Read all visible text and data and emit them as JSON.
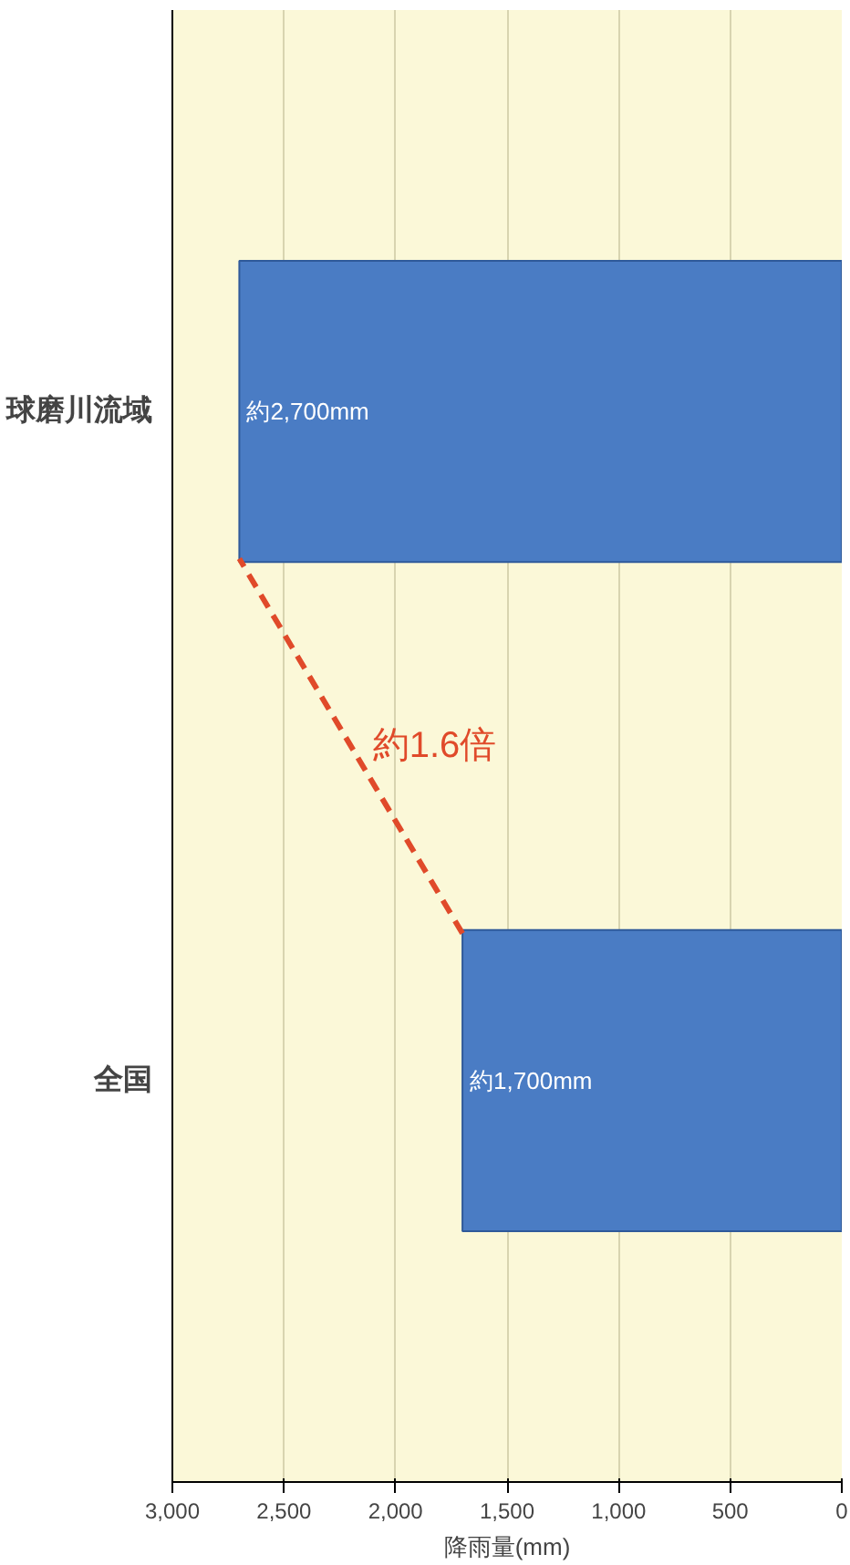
{
  "chart_data": {
    "type": "bar",
    "orientation": "horizontal",
    "xlabel": "降雨量(mm)",
    "categories": [
      "球磨川流域",
      "全国"
    ],
    "values": [
      2700,
      1700
    ],
    "color": "#4a7cc4",
    "xlim": [
      3000,
      0
    ],
    "xticks": [
      {
        "value": 3000,
        "label": "3,000"
      },
      {
        "value": 2500,
        "label": "2,500"
      },
      {
        "value": 2000,
        "label": "2,000"
      },
      {
        "value": 1500,
        "label": "1,500"
      },
      {
        "value": 1000,
        "label": "1,000"
      },
      500,
      0
    ],
    "grid": "x",
    "annotations": [
      {
        "text": "約2,700mm",
        "x": 2700,
        "y": "球磨川流域"
      },
      {
        "text": "約1,700mm",
        "x": 1700,
        "y": "全国"
      },
      "約1.6倍"
    ]
  }
}
